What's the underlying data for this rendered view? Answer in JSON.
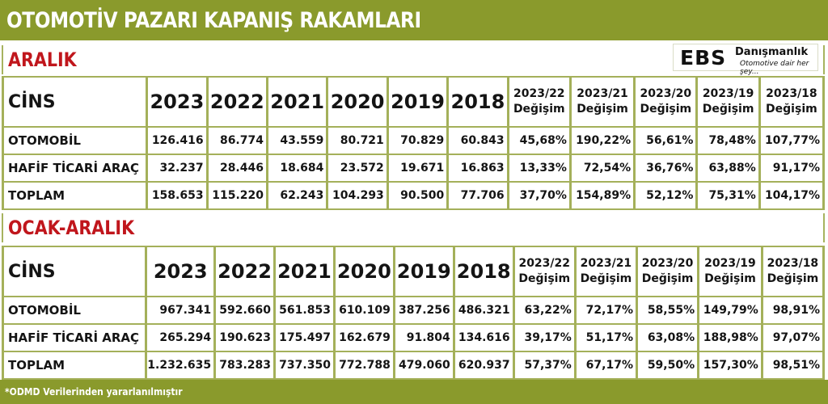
{
  "title": "OTOMOTİV PAZARI KAPANIŞ RAKAMLARI",
  "logo": {
    "ebs": "EBS",
    "name": "Danışmanlık",
    "slogan": "Otomotive dair her şey..."
  },
  "colors": {
    "header_bar": "#8a9a2c",
    "grid_line": "#a4b05a",
    "section_label": "#c0161c"
  },
  "sections": [
    {
      "label": "ARALIK",
      "header": {
        "cins": "CİNS",
        "years": [
          "2023",
          "2022",
          "2021",
          "2020",
          "2019",
          "2018"
        ],
        "changes": [
          {
            "period": "2023/22",
            "word": "Değişim"
          },
          {
            "period": "2023/21",
            "word": "Değişim"
          },
          {
            "period": "2023/20",
            "word": "Değişim"
          },
          {
            "period": "2023/19",
            "word": "Değişim"
          },
          {
            "period": "2023/18",
            "word": "Değişim"
          }
        ]
      },
      "rows": [
        {
          "label": "OTOMOBİL",
          "values": [
            "126.416",
            "86.774",
            "43.559",
            "80.721",
            "70.829",
            "60.843",
            "45,68%",
            "190,22%",
            "56,61%",
            "78,48%",
            "107,77%"
          ]
        },
        {
          "label": "HAFİF TİCARİ ARAÇ",
          "values": [
            "32.237",
            "28.446",
            "18.684",
            "23.572",
            "19.671",
            "16.863",
            "13,33%",
            "72,54%",
            "36,76%",
            "63,88%",
            "91,17%"
          ]
        },
        {
          "label": "TOPLAM",
          "values": [
            "158.653",
            "115.220",
            "62.243",
            "104.293",
            "90.500",
            "77.706",
            "37,70%",
            "154,89%",
            "52,12%",
            "75,31%",
            "104,17%"
          ]
        }
      ]
    },
    {
      "label": "OCAK-ARALIK",
      "header": {
        "cins": "CİNS",
        "years": [
          "2023",
          "2022",
          "2021",
          "2020",
          "2019",
          "2018"
        ],
        "changes": [
          {
            "period": "2023/22",
            "word": "Değişim"
          },
          {
            "period": "2023/21",
            "word": "Değişim"
          },
          {
            "period": "2023/20",
            "word": "Değişim"
          },
          {
            "period": "2023/19",
            "word": "Değişim"
          },
          {
            "period": "2023/18",
            "word": "Değişim"
          }
        ]
      },
      "rows": [
        {
          "label": "OTOMOBİL",
          "values": [
            "967.341",
            "592.660",
            "561.853",
            "610.109",
            "387.256",
            "486.321",
            "63,22%",
            "72,17%",
            "58,55%",
            "149,79%",
            "98,91%"
          ]
        },
        {
          "label": "HAFİF TİCARİ ARAÇ",
          "values": [
            "265.294",
            "190.623",
            "175.497",
            "162.679",
            "91.804",
            "134.616",
            "39,17%",
            "51,17%",
            "63,08%",
            "188,98%",
            "97,07%"
          ]
        },
        {
          "label": "TOPLAM",
          "values": [
            "1.232.635",
            "783.283",
            "737.350",
            "772.788",
            "479.060",
            "620.937",
            "57,37%",
            "67,17%",
            "59,50%",
            "157,30%",
            "98,51%"
          ]
        }
      ]
    }
  ],
  "footer": "*ODMD Verilerinden yararlanılmıştır"
}
